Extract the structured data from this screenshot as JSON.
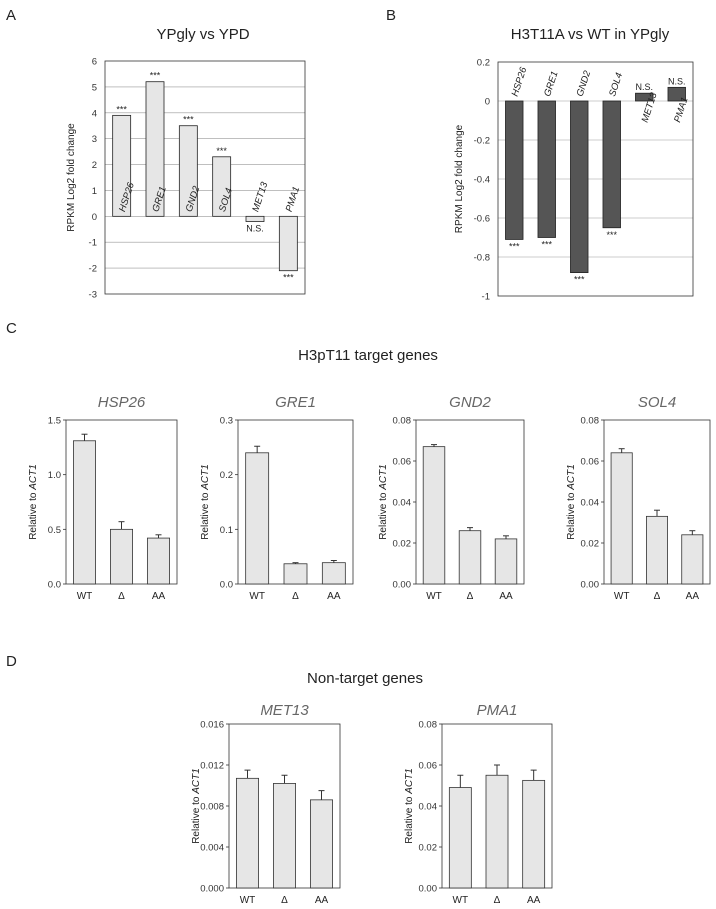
{
  "sections": {
    "C": {
      "letter": "C",
      "title": "H3pT11 target genes"
    },
    "D": {
      "letter": "D",
      "title": "Non-target genes"
    }
  },
  "chart_data": [
    {
      "id": "panelA",
      "panel_letter": "A",
      "type": "bar",
      "title": "YPgly vs YPD",
      "ylabel": "RPKM Log2 fold change",
      "ylim": [
        -3,
        6
      ],
      "yticks": [
        "6",
        "5",
        "4",
        "3",
        "2",
        "1",
        "0",
        "-1",
        "-2",
        "-3"
      ],
      "gridlines": true,
      "bar_color": "#e6e6e6",
      "categories": [
        "HSP26",
        "GRE1",
        "GND2",
        "SOL4",
        "MET13",
        "PMA1"
      ],
      "values": [
        3.9,
        5.2,
        3.5,
        2.3,
        -0.2,
        -2.1
      ],
      "significance": [
        "***",
        "***",
        "***",
        "***",
        "N.S.",
        "***"
      ]
    },
    {
      "id": "panelB",
      "panel_letter": "B",
      "type": "bar",
      "title": "H3T11A vs WT in YPgly",
      "ylabel": "RPKM Log2 fold change",
      "ylim": [
        -1,
        0.2
      ],
      "yticks": [
        "0.2",
        "0",
        "-0.2",
        "-0.4",
        "-0.6",
        "-0.8",
        "-1"
      ],
      "gridlines": true,
      "bar_color": "#555555",
      "categories": [
        "HSP26",
        "GRE1",
        "GND2",
        "SOL4",
        "MET13",
        "PMA1"
      ],
      "values": [
        -0.71,
        -0.7,
        -0.88,
        -0.65,
        0.04,
        0.07
      ],
      "significance": [
        "***",
        "***",
        "***",
        "***",
        "N.S.",
        "N.S."
      ]
    },
    {
      "id": "c1",
      "type": "bar",
      "title": "HSP26",
      "ylabel_prefix": "Relative to ",
      "ylabel_gene": "ACT1",
      "ylim": [
        0,
        1.5
      ],
      "yticks": [
        "0.0",
        "0.5",
        "1.0",
        "1.5"
      ],
      "categories": [
        "WT",
        "Δ",
        "AA"
      ],
      "values": [
        1.31,
        0.5,
        0.42
      ],
      "errors": [
        0.06,
        0.07,
        0.03
      ]
    },
    {
      "id": "c2",
      "type": "bar",
      "title": "GRE1",
      "ylabel_prefix": "Relative to ",
      "ylabel_gene": "ACT1",
      "ylim": [
        0,
        0.3
      ],
      "yticks": [
        "0.0",
        "0.1",
        "0.2",
        "0.3"
      ],
      "categories": [
        "WT",
        "Δ",
        "AA"
      ],
      "values": [
        0.24,
        0.037,
        0.039
      ],
      "errors": [
        0.012,
        0.002,
        0.004
      ]
    },
    {
      "id": "c3",
      "type": "bar",
      "title": "GND2",
      "ylabel_prefix": "Relative to ",
      "ylabel_gene": "ACT1",
      "ylim": [
        0,
        0.08
      ],
      "yticks": [
        "0.00",
        "0.02",
        "0.04",
        "0.06",
        "0.08"
      ],
      "categories": [
        "WT",
        "Δ",
        "AA"
      ],
      "values": [
        0.067,
        0.026,
        0.022
      ],
      "errors": [
        0.001,
        0.0015,
        0.0015
      ]
    },
    {
      "id": "c4",
      "type": "bar",
      "title": "SOL4",
      "ylabel_prefix": "Relative to ",
      "ylabel_gene": "ACT1",
      "ylim": [
        0,
        0.08
      ],
      "yticks": [
        "0.00",
        "0.02",
        "0.04",
        "0.06",
        "0.08"
      ],
      "categories": [
        "WT",
        "Δ",
        "AA"
      ],
      "values": [
        0.064,
        0.033,
        0.024
      ],
      "errors": [
        0.002,
        0.003,
        0.002
      ]
    },
    {
      "id": "d1",
      "type": "bar",
      "title": "MET13",
      "ylabel_prefix": "Relative to ",
      "ylabel_gene": "ACT1",
      "ylim": [
        0,
        0.016
      ],
      "yticks": [
        "0.000",
        "0.004",
        "0.008",
        "0.012",
        "0.016"
      ],
      "categories": [
        "WT",
        "Δ",
        "AA"
      ],
      "values": [
        0.0107,
        0.0102,
        0.0086
      ],
      "errors": [
        0.0008,
        0.0008,
        0.0009
      ]
    },
    {
      "id": "d2",
      "type": "bar",
      "title": "PMA1",
      "ylabel_prefix": "Relative to ",
      "ylabel_gene": "ACT1",
      "ylim": [
        0,
        0.08
      ],
      "yticks": [
        "0.00",
        "0.02",
        "0.04",
        "0.06",
        "0.08"
      ],
      "categories": [
        "WT",
        "Δ",
        "AA"
      ],
      "values": [
        0.049,
        0.055,
        0.0525
      ],
      "errors": [
        0.006,
        0.005,
        0.005
      ]
    }
  ]
}
